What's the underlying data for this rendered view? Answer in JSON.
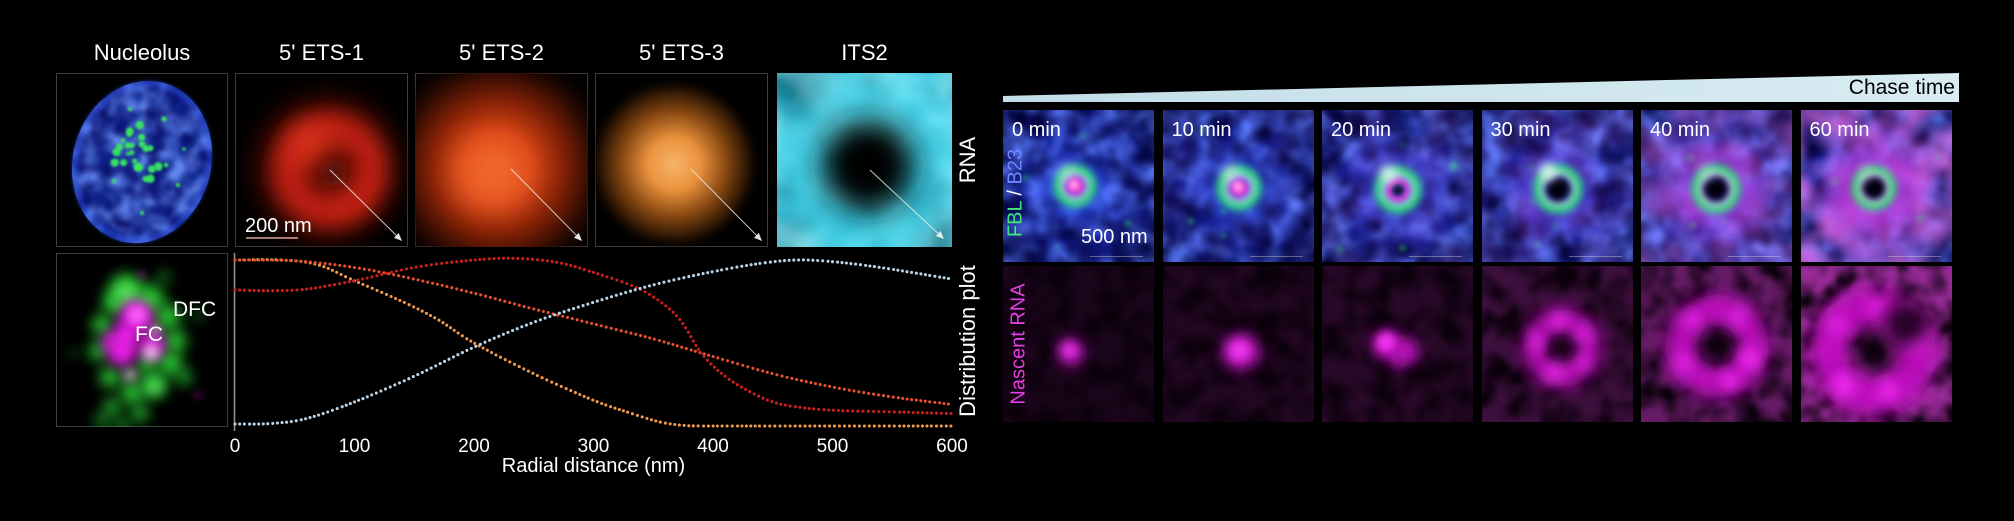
{
  "figure": {
    "left": {
      "column_titles": [
        "Nucleolus",
        "5' ETS-1",
        "5' ETS-2",
        "5' ETS-3",
        "ITS2"
      ],
      "row_label_top": "RNA",
      "row_label_bottom": "Distribution plot",
      "scale_bar_label": "200 nm",
      "inset_labels": {
        "fc": "FC",
        "dfc": "DFC"
      }
    },
    "right": {
      "chase_time_label": "Chase time",
      "time_labels": [
        "0 min",
        "10 min",
        "20 min",
        "30 min",
        "40 min",
        "60 min"
      ],
      "channel_label_parts": [
        {
          "text": "FBL",
          "color": "#3ee87c"
        },
        {
          "text": " / ",
          "color": "#ffffff"
        },
        {
          "text": "B23",
          "color": "#6e86ff"
        }
      ],
      "row_label_bottom": "Nascent RNA",
      "row_label_bottom_color": "#e33ee3",
      "scale_bar_label": "500 nm"
    }
  },
  "chart_data": {
    "type": "scatter",
    "title": "",
    "xlabel": "Radial distance (nm)",
    "ylabel": "Distribution plot",
    "xlim": [
      0,
      600
    ],
    "ylim": [
      0,
      1.05
    ],
    "xticks": [
      0,
      100,
      200,
      300,
      400,
      500,
      600
    ],
    "grid": false,
    "legend": "none",
    "marker": "dot",
    "series": [
      {
        "name": "5' ETS-3",
        "color": "#f09a4b",
        "points": [
          [
            0,
            1.0
          ],
          [
            40,
            1.0
          ],
          [
            70,
            0.97
          ],
          [
            100,
            0.875
          ],
          [
            140,
            0.75
          ],
          [
            170,
            0.64
          ],
          [
            200,
            0.5
          ],
          [
            250,
            0.315
          ],
          [
            300,
            0.155
          ],
          [
            330,
            0.08
          ],
          [
            355,
            0.025
          ],
          [
            375,
            0.004
          ],
          [
            395,
            0.0
          ],
          [
            450,
            0.0
          ],
          [
            500,
            0.0
          ],
          [
            550,
            0.0
          ],
          [
            600,
            0.0
          ]
        ]
      },
      {
        "name": "5' ETS-2",
        "color": "#e5512e",
        "points": [
          [
            0,
            1.0
          ],
          [
            50,
            0.995
          ],
          [
            100,
            0.955
          ],
          [
            150,
            0.885
          ],
          [
            200,
            0.8
          ],
          [
            250,
            0.705
          ],
          [
            300,
            0.615
          ],
          [
            350,
            0.525
          ],
          [
            390,
            0.44
          ],
          [
            450,
            0.315
          ],
          [
            500,
            0.235
          ],
          [
            550,
            0.175
          ],
          [
            600,
            0.13
          ]
        ]
      },
      {
        "name": "5' ETS-1",
        "color": "#cb1f1e",
        "points": [
          [
            0,
            0.82
          ],
          [
            30,
            0.815
          ],
          [
            60,
            0.825
          ],
          [
            100,
            0.875
          ],
          [
            150,
            0.955
          ],
          [
            200,
            1.0
          ],
          [
            235,
            1.01
          ],
          [
            270,
            0.985
          ],
          [
            300,
            0.925
          ],
          [
            340,
            0.82
          ],
          [
            370,
            0.66
          ],
          [
            390,
            0.44
          ],
          [
            410,
            0.3
          ],
          [
            430,
            0.21
          ],
          [
            450,
            0.145
          ],
          [
            470,
            0.115
          ],
          [
            500,
            0.095
          ],
          [
            550,
            0.085
          ],
          [
            600,
            0.075
          ]
        ]
      },
      {
        "name": "ITS2",
        "color": "#b9d3e6",
        "points": [
          [
            0,
            0.012
          ],
          [
            30,
            0.015
          ],
          [
            60,
            0.045
          ],
          [
            100,
            0.145
          ],
          [
            150,
            0.3
          ],
          [
            200,
            0.475
          ],
          [
            250,
            0.625
          ],
          [
            300,
            0.745
          ],
          [
            350,
            0.85
          ],
          [
            400,
            0.93
          ],
          [
            440,
            0.98
          ],
          [
            470,
            1.0
          ],
          [
            500,
            0.99
          ],
          [
            540,
            0.955
          ],
          [
            600,
            0.885
          ]
        ]
      }
    ]
  }
}
